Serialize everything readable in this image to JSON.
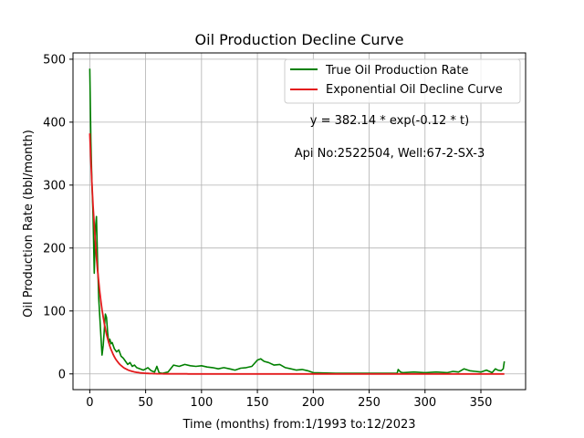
{
  "chart_data": {
    "type": "line",
    "title": "Oil Production Decline Curve",
    "xlabel": "Time (months) from:1/1993 to:12/2023",
    "ylabel": "Oil Production Rate (bbl/month)",
    "xlim": [
      -15,
      390
    ],
    "ylim": [
      -25,
      510
    ],
    "xticks": [
      0,
      50,
      100,
      150,
      200,
      250,
      300,
      350
    ],
    "yticks": [
      0,
      100,
      200,
      300,
      400,
      500
    ],
    "grid": true,
    "legend_position": "top-right",
    "annotations": [
      "y = 382.14 * exp(-0.12 * t)",
      "Api No:2522504, Well:67-2-SX-3"
    ],
    "series": [
      {
        "name": "True Oil Production Rate",
        "color": "#008000",
        "x": [
          0,
          1,
          2,
          3,
          4,
          5,
          6,
          7,
          8,
          9,
          10,
          11,
          12,
          13,
          14,
          15,
          16,
          17,
          18,
          19,
          20,
          22,
          24,
          26,
          28,
          30,
          32,
          34,
          36,
          38,
          40,
          42,
          45,
          48,
          52,
          55,
          58,
          60,
          62,
          65,
          70,
          75,
          80,
          85,
          90,
          95,
          100,
          105,
          110,
          115,
          120,
          125,
          130,
          135,
          140,
          145,
          150,
          153,
          156,
          160,
          165,
          170,
          175,
          180,
          185,
          190,
          195,
          200,
          220,
          240,
          260,
          275,
          276,
          278,
          280,
          290,
          300,
          310,
          320,
          325,
          330,
          335,
          340,
          345,
          350,
          355,
          360,
          363,
          365,
          368,
          370,
          371
        ],
        "y": [
          485,
          370,
          300,
          250,
          160,
          230,
          250,
          180,
          120,
          90,
          60,
          30,
          45,
          70,
          95,
          90,
          65,
          50,
          55,
          48,
          50,
          40,
          35,
          38,
          28,
          25,
          20,
          15,
          18,
          12,
          14,
          10,
          8,
          6,
          10,
          5,
          3,
          12,
          2,
          1,
          3,
          14,
          12,
          15,
          13,
          12,
          13,
          11,
          10,
          8,
          10,
          8,
          6,
          9,
          10,
          12,
          22,
          24,
          20,
          18,
          14,
          15,
          10,
          8,
          6,
          7,
          5,
          2,
          1,
          1,
          1,
          1,
          7,
          3,
          2,
          3,
          2,
          3,
          2,
          4,
          3,
          8,
          5,
          4,
          3,
          6,
          2,
          8,
          6,
          5,
          8,
          20
        ]
      },
      {
        "name": "Exponential Oil Decline Curve",
        "color": "#e31a1c",
        "equation": {
          "a": 382.14,
          "b": 0.12
        },
        "x_range": [
          0,
          371
        ]
      }
    ]
  }
}
